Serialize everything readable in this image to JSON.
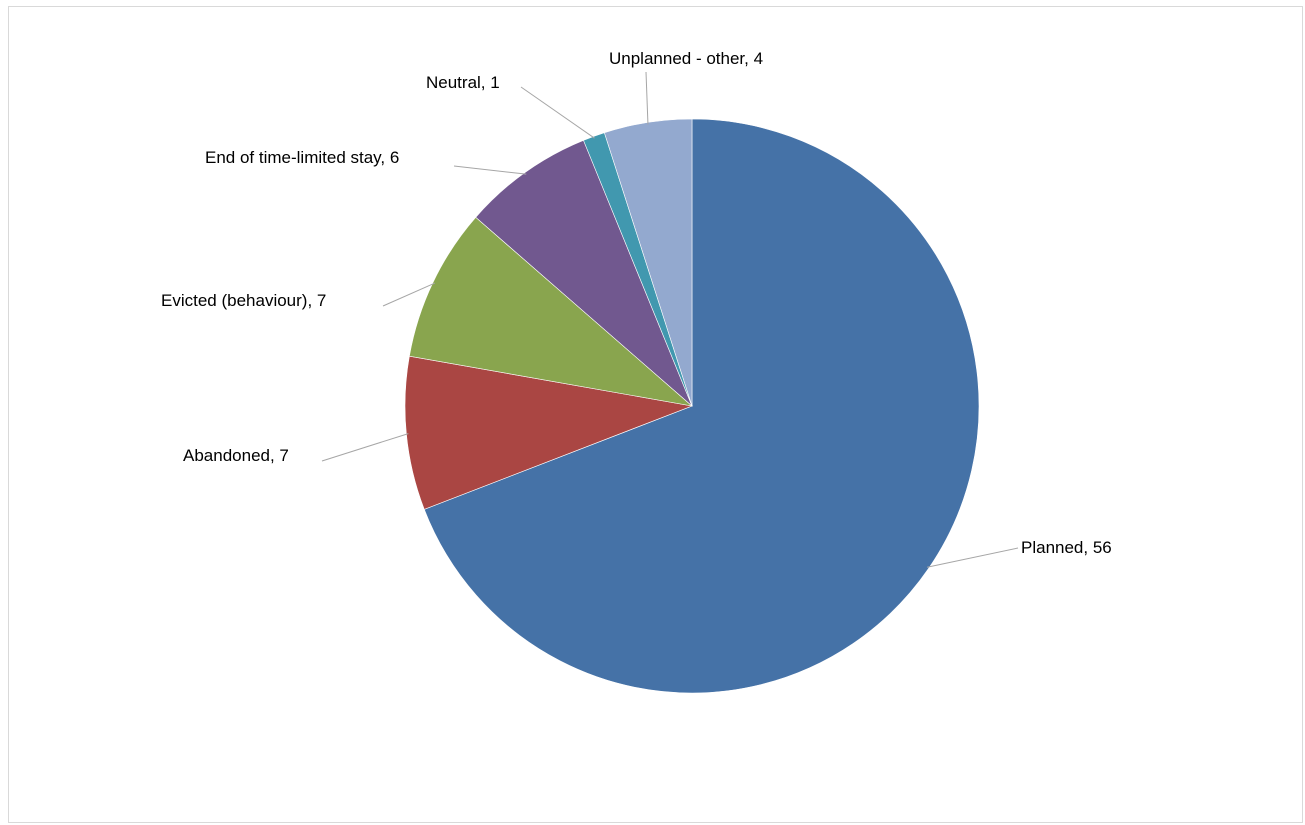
{
  "chart_data": {
    "type": "pie",
    "start": "12 o'clock",
    "direction": "clockwise",
    "slices": [
      {
        "label": "Planned",
        "value": 56,
        "display": "Planned, 56",
        "color": "#4572a7"
      },
      {
        "label": "Abandoned",
        "value": 7,
        "display": "Abandoned, 7",
        "color": "#aa4643"
      },
      {
        "label": "Evicted (behaviour)",
        "value": 7,
        "display": "Evicted (behaviour), 7",
        "color": "#89a54e"
      },
      {
        "label": "End of time-limited stay",
        "value": 6,
        "display": "End of time-limited stay, 6",
        "color": "#71588f"
      },
      {
        "label": "Neutral",
        "value": 1,
        "display": "Neutral, 1",
        "color": "#4198af"
      },
      {
        "label": "Unplanned - other",
        "value": 4,
        "display": "Unplanned - other, 4",
        "color": "#93a9cf"
      }
    ]
  }
}
